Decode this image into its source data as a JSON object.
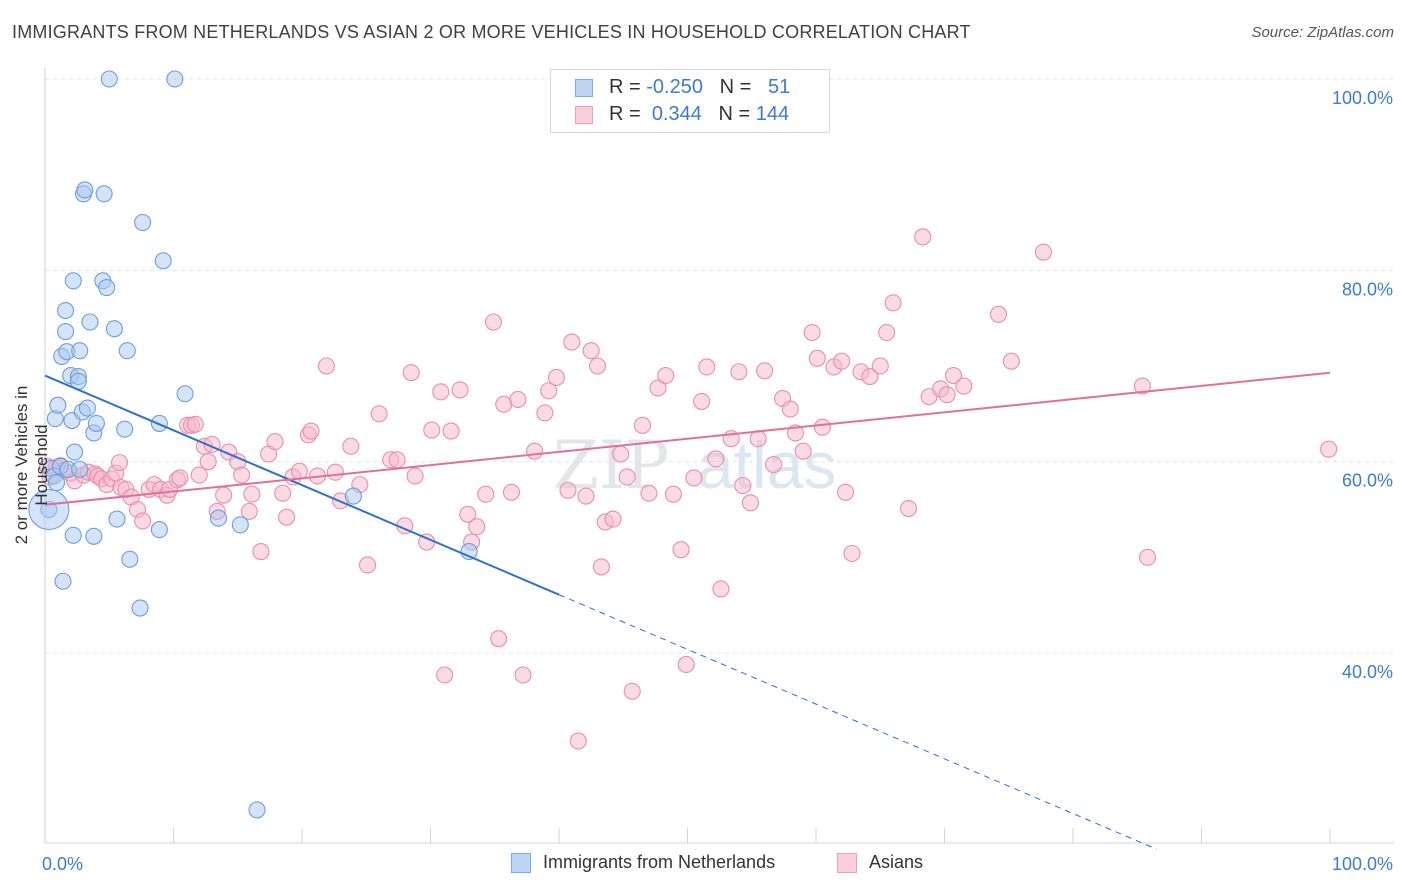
{
  "title": "IMMIGRANTS FROM NETHERLANDS VS ASIAN 2 OR MORE VEHICLES IN HOUSEHOLD CORRELATION CHART",
  "source": "Source: ZipAtlas.com",
  "legend_top": {
    "rows": [
      {
        "r_label": "R =",
        "r_value": "-0.250",
        "n_label": "N =",
        "n_value": "51",
        "color": "#a9c8f0"
      },
      {
        "r_label": "R =",
        "r_value": "0.344",
        "n_label": "N =",
        "n_value": "144",
        "color": "#f5b8cb"
      }
    ]
  },
  "legend_bottom": [
    {
      "label": "Immigrants from Netherlands",
      "color": "#a9c8f0"
    },
    {
      "label": "Asians",
      "color": "#f5b8cb"
    }
  ],
  "watermark": "ZIPatlas",
  "colors": {
    "blue_fill": "#a9c8f0",
    "blue_stroke": "#6a9fdc",
    "blue_line": "#2f6fce",
    "pink_fill": "#f5b8cb",
    "pink_stroke": "#e98eab",
    "pink_line": "#e0709a",
    "axis_label": "#3d7bd0"
  },
  "chart_data": {
    "type": "scatter",
    "xlabel": "",
    "ylabel": "2 or more Vehicles in Household",
    "xlim": [
      0,
      100
    ],
    "ylim": [
      20,
      102
    ],
    "x_tick_labels": [
      "0.0%",
      "100.0%"
    ],
    "y_tick_labels": [
      "100.0%",
      "80.0%",
      "60.0%",
      "40.0%"
    ],
    "y_ticks": [
      100,
      80,
      60,
      40
    ],
    "grid": "horizontal dashed",
    "legend_position": "top-center",
    "series": [
      {
        "name": "Immigrants from Netherlands",
        "trend": {
          "x0": 0,
          "y0": 69.0,
          "x1": 40,
          "y1": 46.1,
          "dashed_to_x": 86.5,
          "dashed_to_y": 19.5
        },
        "points": [
          [
            0.3,
            55.0
          ],
          [
            0.5,
            59.3
          ],
          [
            0.7,
            58.5
          ],
          [
            0.8,
            64.5
          ],
          [
            0.9,
            57.8
          ],
          [
            1.0,
            65.9
          ],
          [
            1.2,
            59.5
          ],
          [
            1.3,
            71.0
          ],
          [
            1.4,
            47.5
          ],
          [
            1.6,
            75.8
          ],
          [
            1.6,
            73.6
          ],
          [
            1.7,
            71.5
          ],
          [
            1.8,
            59.2
          ],
          [
            2.0,
            69.0
          ],
          [
            2.1,
            64.3
          ],
          [
            2.2,
            52.3
          ],
          [
            2.2,
            78.9
          ],
          [
            2.3,
            61.0
          ],
          [
            2.6,
            68.9
          ],
          [
            2.6,
            68.4
          ],
          [
            2.7,
            59.2
          ],
          [
            2.7,
            71.6
          ],
          [
            2.9,
            65.2
          ],
          [
            3.0,
            88.0
          ],
          [
            3.1,
            88.4
          ],
          [
            3.3,
            65.6
          ],
          [
            3.5,
            74.6
          ],
          [
            3.8,
            52.2
          ],
          [
            3.8,
            63.0
          ],
          [
            4.0,
            64.0
          ],
          [
            4.5,
            78.9
          ],
          [
            4.6,
            88.0
          ],
          [
            4.8,
            78.2
          ],
          [
            5.0,
            100.0
          ],
          [
            5.4,
            73.9
          ],
          [
            5.6,
            54.0
          ],
          [
            6.2,
            63.4
          ],
          [
            6.4,
            71.6
          ],
          [
            6.6,
            49.8
          ],
          [
            7.4,
            44.7
          ],
          [
            7.6,
            85.0
          ],
          [
            8.9,
            64.0
          ],
          [
            8.9,
            52.9
          ],
          [
            9.2,
            81.0
          ],
          [
            10.1,
            100.0
          ],
          [
            10.9,
            67.1
          ],
          [
            13.5,
            54.1
          ],
          [
            15.2,
            53.4
          ],
          [
            16.5,
            23.6
          ],
          [
            24.0,
            56.4
          ],
          [
            33.0,
            50.6
          ]
        ]
      },
      {
        "name": "Asians",
        "trend": {
          "x0": 0,
          "y0": 55.5,
          "x1": 100,
          "y1": 69.3
        },
        "points": [
          [
            0.2,
            59.5
          ],
          [
            0.4,
            58.4
          ],
          [
            0.9,
            59.4
          ],
          [
            1.2,
            59.6
          ],
          [
            1.5,
            59.1
          ],
          [
            2.0,
            58.8
          ],
          [
            2.3,
            58.0
          ],
          [
            3.0,
            58.6
          ],
          [
            3.4,
            58.9
          ],
          [
            3.9,
            58.7
          ],
          [
            4.1,
            58.5
          ],
          [
            4.4,
            58.2
          ],
          [
            4.8,
            57.6
          ],
          [
            5.2,
            58.2
          ],
          [
            5.5,
            58.8
          ],
          [
            5.8,
            59.9
          ],
          [
            5.9,
            57.3
          ],
          [
            6.3,
            57.1
          ],
          [
            6.7,
            56.3
          ],
          [
            7.2,
            55.0
          ],
          [
            7.6,
            53.8
          ],
          [
            8.1,
            57.1
          ],
          [
            8.5,
            57.6
          ],
          [
            9.0,
            57.1
          ],
          [
            9.5,
            56.5
          ],
          [
            9.7,
            57.1
          ],
          [
            10.3,
            58.1
          ],
          [
            10.5,
            58.3
          ],
          [
            11.1,
            63.8
          ],
          [
            11.4,
            63.8
          ],
          [
            11.7,
            63.9
          ],
          [
            12.0,
            58.6
          ],
          [
            12.4,
            61.6
          ],
          [
            12.7,
            60.0
          ],
          [
            13.0,
            61.8
          ],
          [
            13.4,
            54.8
          ],
          [
            13.9,
            56.5
          ],
          [
            14.3,
            61.0
          ],
          [
            15.0,
            60.0
          ],
          [
            15.3,
            58.6
          ],
          [
            15.9,
            54.8
          ],
          [
            16.1,
            56.6
          ],
          [
            16.8,
            50.6
          ],
          [
            17.4,
            60.8
          ],
          [
            17.9,
            62.1
          ],
          [
            18.5,
            56.7
          ],
          [
            18.8,
            54.2
          ],
          [
            19.3,
            58.4
          ],
          [
            19.8,
            59.0
          ],
          [
            20.5,
            62.8
          ],
          [
            20.7,
            63.2
          ],
          [
            21.2,
            58.5
          ],
          [
            21.9,
            70.0
          ],
          [
            22.6,
            58.9
          ],
          [
            23.0,
            55.9
          ],
          [
            23.8,
            61.6
          ],
          [
            24.5,
            57.6
          ],
          [
            25.1,
            49.2
          ],
          [
            26.0,
            65.0
          ],
          [
            26.9,
            60.2
          ],
          [
            27.4,
            60.2
          ],
          [
            28.0,
            53.3
          ],
          [
            28.5,
            69.3
          ],
          [
            28.8,
            58.5
          ],
          [
            29.7,
            51.6
          ],
          [
            30.1,
            63.3
          ],
          [
            30.8,
            67.3
          ],
          [
            31.1,
            37.7
          ],
          [
            31.6,
            63.2
          ],
          [
            32.3,
            67.5
          ],
          [
            32.9,
            54.5
          ],
          [
            33.2,
            51.6
          ],
          [
            33.6,
            53.2
          ],
          [
            34.3,
            56.6
          ],
          [
            34.9,
            74.6
          ],
          [
            35.3,
            41.5
          ],
          [
            35.7,
            66.0
          ],
          [
            36.3,
            56.8
          ],
          [
            36.8,
            66.5
          ],
          [
            37.2,
            37.7
          ],
          [
            38.1,
            61.1
          ],
          [
            38.9,
            65.1
          ],
          [
            39.2,
            67.4
          ],
          [
            39.8,
            68.8
          ],
          [
            40.7,
            57.0
          ],
          [
            41.0,
            72.5
          ],
          [
            41.5,
            30.8
          ],
          [
            42.1,
            56.4
          ],
          [
            42.5,
            71.6
          ],
          [
            43.0,
            70.0
          ],
          [
            43.3,
            49.0
          ],
          [
            43.6,
            53.7
          ],
          [
            44.2,
            54.0
          ],
          [
            44.8,
            60.8
          ],
          [
            45.3,
            58.4
          ],
          [
            45.7,
            36.0
          ],
          [
            46.5,
            63.8
          ],
          [
            47.0,
            56.7
          ],
          [
            47.7,
            67.7
          ],
          [
            48.3,
            69.0
          ],
          [
            48.9,
            56.6
          ],
          [
            49.5,
            50.8
          ],
          [
            49.9,
            38.8
          ],
          [
            50.5,
            58.3
          ],
          [
            51.1,
            66.3
          ],
          [
            51.5,
            69.9
          ],
          [
            52.2,
            60.3
          ],
          [
            52.6,
            46.7
          ],
          [
            53.4,
            62.4
          ],
          [
            54.0,
            69.4
          ],
          [
            54.3,
            57.5
          ],
          [
            54.9,
            55.7
          ],
          [
            55.5,
            62.4
          ],
          [
            56.0,
            69.5
          ],
          [
            56.7,
            59.7
          ],
          [
            57.4,
            66.6
          ],
          [
            58.0,
            65.5
          ],
          [
            58.4,
            63.0
          ],
          [
            59.0,
            61.1
          ],
          [
            59.7,
            73.5
          ],
          [
            60.1,
            70.8
          ],
          [
            60.5,
            63.6
          ],
          [
            61.4,
            69.9
          ],
          [
            62.0,
            70.5
          ],
          [
            62.3,
            56.8
          ],
          [
            62.8,
            50.4
          ],
          [
            63.5,
            69.4
          ],
          [
            64.2,
            68.9
          ],
          [
            65.0,
            70.0
          ],
          [
            65.5,
            73.5
          ],
          [
            66.0,
            76.6
          ],
          [
            67.2,
            55.1
          ],
          [
            68.3,
            83.5
          ],
          [
            68.8,
            66.8
          ],
          [
            69.7,
            67.6
          ],
          [
            70.2,
            67.0
          ],
          [
            70.7,
            69.0
          ],
          [
            71.5,
            67.9
          ],
          [
            74.2,
            75.4
          ],
          [
            75.2,
            70.5
          ],
          [
            77.7,
            81.9
          ],
          [
            85.4,
            67.9
          ],
          [
            85.8,
            50.0
          ],
          [
            99.9,
            61.3
          ]
        ]
      }
    ]
  }
}
